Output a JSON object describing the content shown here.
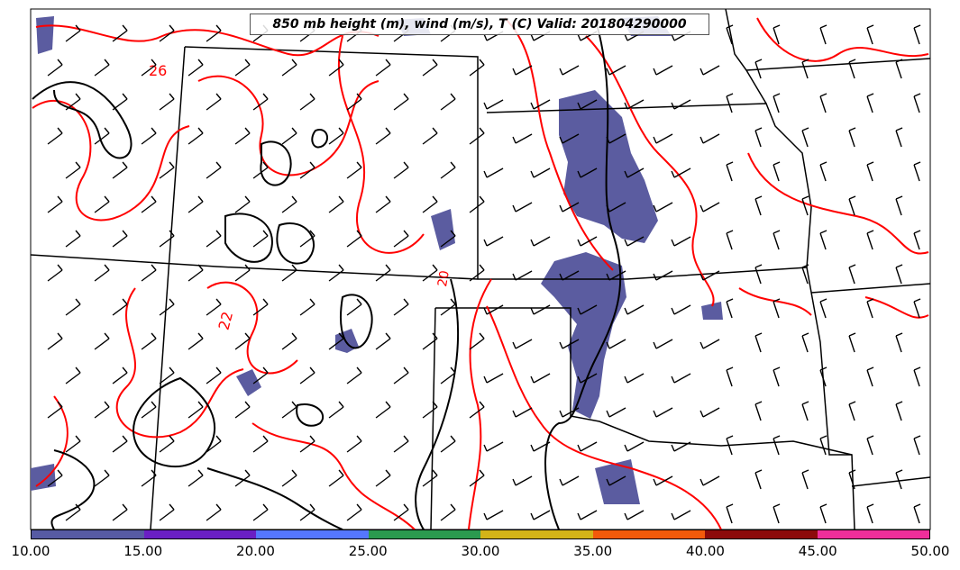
{
  "title": "850 mb height (m), wind (m/s), T (C) Valid: 201804290000",
  "colors": {
    "height_contour": "#000000",
    "temperature_contour": "#ff0000",
    "wind_fill_base": "#5b5ca0",
    "state_borders": "#000000"
  },
  "contour_labels": [
    "26",
    "22",
    "20"
  ],
  "colorbar": {
    "ticks": [
      "10.00",
      "15.00",
      "20.00",
      "25.00",
      "30.00",
      "35.00",
      "40.00",
      "45.00",
      "50.00"
    ],
    "colors": [
      "#575ba3",
      "#6a1fc4",
      "#5577ff",
      "#2b9a4f",
      "#d4b418",
      "#f25a0b",
      "#8c0b0b",
      "#ef2e9a"
    ]
  }
}
